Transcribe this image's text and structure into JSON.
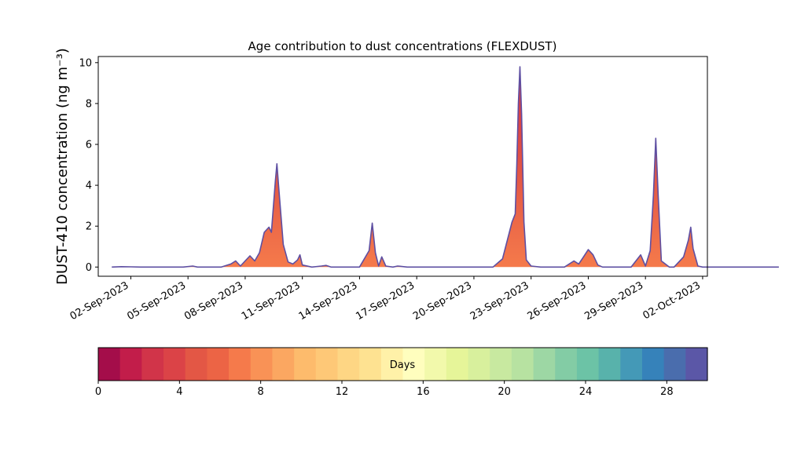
{
  "chart_data": {
    "type": "area",
    "title": "Age contribution to dust concentrations (FLEXDUST)",
    "ylabel": "DUST-410 concentration (ng m⁻³)",
    "xlabel": "",
    "ylim": [
      -0.45,
      10.3
    ],
    "xlim": [
      "2023-08-31T07:00",
      "2023-10-02T06:00"
    ],
    "grid": false,
    "yticks": [
      0,
      2,
      4,
      6,
      8,
      10
    ],
    "xticks": [
      {
        "date": "2023-09-02",
        "label": "02-Sep-2023"
      },
      {
        "date": "2023-09-05",
        "label": "05-Sep-2023"
      },
      {
        "date": "2023-09-08",
        "label": "08-Sep-2023"
      },
      {
        "date": "2023-09-11",
        "label": "11-Sep-2023"
      },
      {
        "date": "2023-09-14",
        "label": "14-Sep-2023"
      },
      {
        "date": "2023-09-17",
        "label": "17-Sep-2023"
      },
      {
        "date": "2023-09-20",
        "label": "20-Sep-2023"
      },
      {
        "date": "2023-09-23",
        "label": "23-Sep-2023"
      },
      {
        "date": "2023-09-26",
        "label": "26-Sep-2023"
      },
      {
        "date": "2023-09-29",
        "label": "29-Sep-2023"
      },
      {
        "date": "2023-10-02",
        "label": "02-Oct-2023"
      }
    ],
    "series": [
      {
        "color": "#5e4fa2",
        "points": [
          [
            "2023-09-01T00:00",
            0
          ],
          [
            "2023-09-01T12:00",
            0.02
          ],
          [
            "2023-09-02T00:00",
            0.01
          ],
          [
            "2023-09-02T12:00",
            0
          ],
          [
            "2023-09-04T18:00",
            0
          ],
          [
            "2023-09-05T06:00",
            0.05
          ],
          [
            "2023-09-05T12:00",
            0
          ],
          [
            "2023-09-06T18:00",
            0
          ],
          [
            "2023-09-07T06:00",
            0.15
          ],
          [
            "2023-09-07T12:00",
            0.3
          ],
          [
            "2023-09-07T18:00",
            0.05
          ],
          [
            "2023-09-08T00:00",
            0.3
          ],
          [
            "2023-09-08T06:00",
            0.55
          ],
          [
            "2023-09-08T12:00",
            0.3
          ],
          [
            "2023-09-08T18:00",
            0.7
          ],
          [
            "2023-09-09T00:00",
            1.7
          ],
          [
            "2023-09-09T06:00",
            1.95
          ],
          [
            "2023-09-09T09:00",
            1.7
          ],
          [
            "2023-09-09T14:00",
            4.2
          ],
          [
            "2023-09-09T16:00",
            5.05
          ],
          [
            "2023-09-09T18:00",
            4.0
          ],
          [
            "2023-09-10T00:00",
            1.1
          ],
          [
            "2023-09-10T06:00",
            0.25
          ],
          [
            "2023-09-10T12:00",
            0.15
          ],
          [
            "2023-09-10T18:00",
            0.35
          ],
          [
            "2023-09-10T21:00",
            0.6
          ],
          [
            "2023-09-11T00:00",
            0.1
          ],
          [
            "2023-09-11T12:00",
            0
          ],
          [
            "2023-09-12T00:00",
            0.05
          ],
          [
            "2023-09-12T06:00",
            0.08
          ],
          [
            "2023-09-12T12:00",
            0
          ],
          [
            "2023-09-14T00:00",
            0
          ],
          [
            "2023-09-14T12:00",
            0.8
          ],
          [
            "2023-09-14T16:00",
            2.15
          ],
          [
            "2023-09-14T20:00",
            0.7
          ],
          [
            "2023-09-15T00:00",
            0.05
          ],
          [
            "2023-09-15T04:00",
            0.5
          ],
          [
            "2023-09-15T09:00",
            0.05
          ],
          [
            "2023-09-15T18:00",
            0
          ],
          [
            "2023-09-16T00:00",
            0.05
          ],
          [
            "2023-09-16T12:00",
            0
          ],
          [
            "2023-09-21T00:00",
            0
          ],
          [
            "2023-09-21T12:00",
            0.4
          ],
          [
            "2023-09-22T00:00",
            2.2
          ],
          [
            "2023-09-22T04:00",
            2.6
          ],
          [
            "2023-09-22T06:00",
            5.0
          ],
          [
            "2023-09-22T08:00",
            8.0
          ],
          [
            "2023-09-22T10:00",
            9.8
          ],
          [
            "2023-09-22T12:00",
            7.5
          ],
          [
            "2023-09-22T15:00",
            2.2
          ],
          [
            "2023-09-22T18:00",
            0.35
          ],
          [
            "2023-09-23T00:00",
            0.05
          ],
          [
            "2023-09-23T12:00",
            0
          ],
          [
            "2023-09-24T18:00",
            0
          ],
          [
            "2023-09-25T06:00",
            0.3
          ],
          [
            "2023-09-25T12:00",
            0.15
          ],
          [
            "2023-09-25T18:00",
            0.5
          ],
          [
            "2023-09-26T00:00",
            0.85
          ],
          [
            "2023-09-26T06:00",
            0.6
          ],
          [
            "2023-09-26T12:00",
            0.1
          ],
          [
            "2023-09-26T18:00",
            0
          ],
          [
            "2023-09-28T06:00",
            0
          ],
          [
            "2023-09-28T18:00",
            0.6
          ],
          [
            "2023-09-29T00:00",
            0.05
          ],
          [
            "2023-09-29T06:00",
            0.8
          ],
          [
            "2023-09-29T10:00",
            3.5
          ],
          [
            "2023-09-29T13:00",
            6.3
          ],
          [
            "2023-09-29T16:00",
            3.5
          ],
          [
            "2023-09-29T20:00",
            0.3
          ],
          [
            "2023-09-30T06:00",
            0
          ],
          [
            "2023-09-30T12:00",
            0
          ],
          [
            "2023-10-01T00:00",
            0.5
          ],
          [
            "2023-10-01T06:00",
            1.3
          ],
          [
            "2023-10-01T09:00",
            1.95
          ],
          [
            "2023-10-01T12:00",
            0.9
          ],
          [
            "2023-10-01T18:00",
            0.05
          ],
          [
            "2023-10-02T00:00",
            0
          ],
          [
            "2023-10-06T00:00",
            0
          ]
        ]
      }
    ],
    "colorbar": {
      "label": "Days",
      "ticks": [
        0,
        4,
        8,
        12,
        16,
        20,
        24,
        28
      ],
      "range": [
        0,
        30
      ],
      "colors": [
        "#a40d4a",
        "#c21d4a",
        "#d13449",
        "#db4347",
        "#e35745",
        "#ec6445",
        "#f57a4b",
        "#f99256",
        "#fba761",
        "#fdbb6c",
        "#fec877",
        "#fed684",
        "#fee291",
        "#fff1a8",
        "#fffebe",
        "#f2f9ab",
        "#e6f599",
        "#d8f09d",
        "#c8e9a0",
        "#b7e2a1",
        "#9dd7a4",
        "#83cca5",
        "#6cc3a6",
        "#58b2ab",
        "#4499b7",
        "#3682ba",
        "#4a6dad",
        "#5b57a7"
      ]
    }
  }
}
